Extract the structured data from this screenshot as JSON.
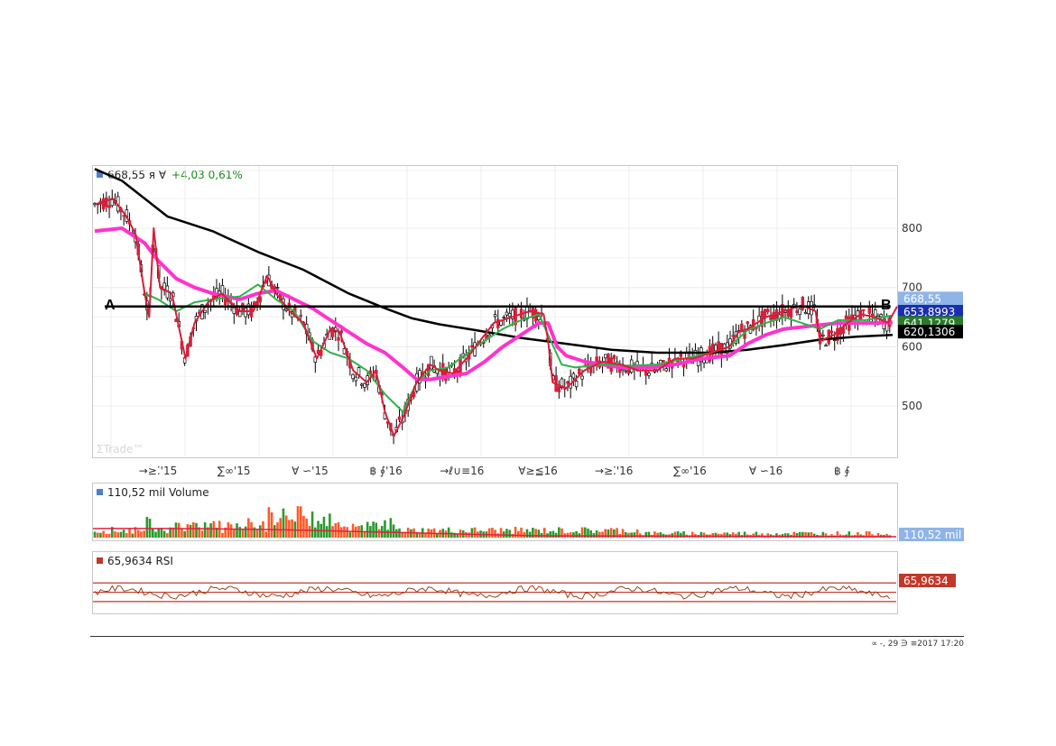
{
  "main": {
    "legend_value": "668,55 я ∀",
    "legend_change": "+4,03 0,61%",
    "legend_color": "#4a7fd4",
    "watermark": "ΣTrade™",
    "label_a": "A",
    "label_b": "B"
  },
  "price_tags": [
    {
      "text": "668,55",
      "value": 668.55,
      "bg": "#8fb4e8",
      "fg": "#ffffff"
    },
    {
      "text": "653,8993",
      "value": 653.9,
      "bg": "#1a2fb0",
      "fg": "#ffffff"
    },
    {
      "text": "641,1279",
      "value": 641.1,
      "bg": "#2a7a2a",
      "fg": "#ffffff"
    },
    {
      "text": "620,1306",
      "value": 620.13,
      "bg": "#000000",
      "fg": "#ffffff"
    }
  ],
  "volume": {
    "legend": "110,52 mil Volume",
    "tag": "110,52 mil",
    "legend_color": "#4a7fd4",
    "tag_bg": "#8fb4e8"
  },
  "rsi": {
    "legend": "65,9634 RSI",
    "tag": "65,9634",
    "legend_color": "#c0392b",
    "tag_bg": "#c0392b",
    "value": 65.9634
  },
  "footer": {
    "timestamp": "∝ -, 29 ∋ ≡2017 17:20"
  },
  "chart_data": {
    "type": "line",
    "ylim": [
      415,
      905
    ],
    "yticks": [
      500,
      600,
      700,
      800
    ],
    "x_tick_labels": [
      "→≥⁚'15",
      "∑∞'15",
      "∀ ∽'15",
      "฿ ∮'16",
      "→ℓ∪≡16",
      "∀≥≦16",
      "→≥⁚'16",
      "∑∞'16",
      "∀ ∽16",
      "฿ ∮"
    ],
    "horizontal_line_AB": 668,
    "series": [
      {
        "color": "#000000",
        "points": [
          [
            0,
            900
          ],
          [
            30,
            880
          ],
          [
            80,
            820
          ],
          [
            130,
            795
          ],
          [
            180,
            760
          ],
          [
            230,
            730
          ],
          [
            280,
            690
          ],
          [
            320,
            665
          ],
          [
            350,
            648
          ],
          [
            380,
            638
          ],
          [
            420,
            628
          ],
          [
            470,
            615
          ],
          [
            520,
            605
          ],
          [
            570,
            595
          ],
          [
            620,
            590
          ],
          [
            680,
            590
          ],
          [
            720,
            595
          ],
          [
            760,
            603
          ],
          [
            800,
            612
          ],
          [
            840,
            617
          ],
          [
            880,
            620
          ]
        ]
      },
      {
        "color": "#ff33cc",
        "points": [
          [
            0,
            795
          ],
          [
            30,
            800
          ],
          [
            55,
            775
          ],
          [
            70,
            745
          ],
          [
            90,
            715
          ],
          [
            110,
            700
          ],
          [
            130,
            690
          ],
          [
            160,
            680
          ],
          [
            180,
            690
          ],
          [
            200,
            695
          ],
          [
            220,
            680
          ],
          [
            240,
            665
          ],
          [
            260,
            645
          ],
          [
            280,
            625
          ],
          [
            300,
            605
          ],
          [
            320,
            590
          ],
          [
            340,
            565
          ],
          [
            355,
            545
          ],
          [
            370,
            545
          ],
          [
            390,
            550
          ],
          [
            410,
            555
          ],
          [
            430,
            575
          ],
          [
            450,
            600
          ],
          [
            470,
            620
          ],
          [
            490,
            640
          ],
          [
            500,
            640
          ],
          [
            510,
            600
          ],
          [
            520,
            585
          ],
          [
            540,
            575
          ],
          [
            560,
            570
          ],
          [
            580,
            565
          ],
          [
            610,
            565
          ],
          [
            640,
            570
          ],
          [
            670,
            580
          ],
          [
            700,
            585
          ],
          [
            720,
            605
          ],
          [
            740,
            620
          ],
          [
            760,
            630
          ],
          [
            790,
            635
          ],
          [
            820,
            640
          ],
          [
            850,
            640
          ],
          [
            880,
            641
          ]
        ]
      },
      {
        "color": "#2db34a",
        "points": [
          [
            55,
            690
          ],
          [
            70,
            680
          ],
          [
            90,
            660
          ],
          [
            110,
            675
          ],
          [
            130,
            680
          ],
          [
            160,
            685
          ],
          [
            180,
            705
          ],
          [
            200,
            680
          ],
          [
            220,
            660
          ],
          [
            240,
            610
          ],
          [
            260,
            590
          ],
          [
            280,
            580
          ],
          [
            300,
            560
          ],
          [
            320,
            520
          ],
          [
            340,
            490
          ],
          [
            355,
            540
          ],
          [
            370,
            560
          ],
          [
            390,
            565
          ],
          [
            420,
            600
          ],
          [
            450,
            630
          ],
          [
            470,
            645
          ],
          [
            490,
            655
          ],
          [
            500,
            620
          ],
          [
            515,
            570
          ],
          [
            530,
            565
          ],
          [
            560,
            570
          ],
          [
            590,
            568
          ],
          [
            620,
            570
          ],
          [
            650,
            580
          ],
          [
            680,
            590
          ],
          [
            700,
            600
          ],
          [
            720,
            628
          ],
          [
            740,
            640
          ],
          [
            760,
            650
          ],
          [
            780,
            640
          ],
          [
            800,
            630
          ],
          [
            820,
            645
          ],
          [
            850,
            645
          ],
          [
            880,
            653
          ]
        ]
      },
      {
        "color": "#d6203a",
        "points": [
          [
            0,
            840
          ],
          [
            20,
            850
          ],
          [
            35,
            820
          ],
          [
            45,
            790
          ],
          [
            55,
            690
          ],
          [
            60,
            650
          ],
          [
            65,
            800
          ],
          [
            72,
            700
          ],
          [
            85,
            690
          ],
          [
            100,
            580
          ],
          [
            110,
            640
          ],
          [
            125,
            675
          ],
          [
            140,
            690
          ],
          [
            160,
            660
          ],
          [
            175,
            660
          ],
          [
            190,
            720
          ],
          [
            200,
            690
          ],
          [
            215,
            660
          ],
          [
            230,
            640
          ],
          [
            245,
            580
          ],
          [
            260,
            630
          ],
          [
            270,
            625
          ],
          [
            285,
            560
          ],
          [
            300,
            540
          ],
          [
            310,
            560
          ],
          [
            320,
            490
          ],
          [
            330,
            450
          ],
          [
            340,
            480
          ],
          [
            355,
            540
          ],
          [
            370,
            570
          ],
          [
            380,
            560
          ],
          [
            395,
            555
          ],
          [
            410,
            580
          ],
          [
            420,
            600
          ],
          [
            440,
            640
          ],
          [
            460,
            650
          ],
          [
            480,
            660
          ],
          [
            495,
            655
          ],
          [
            500,
            610
          ],
          [
            505,
            540
          ],
          [
            520,
            530
          ],
          [
            540,
            560
          ],
          [
            560,
            575
          ],
          [
            580,
            570
          ],
          [
            600,
            560
          ],
          [
            620,
            560
          ],
          [
            640,
            580
          ],
          [
            660,
            580
          ],
          [
            680,
            590
          ],
          [
            700,
            600
          ],
          [
            710,
            625
          ],
          [
            720,
            630
          ],
          [
            740,
            650
          ],
          [
            760,
            660
          ],
          [
            780,
            670
          ],
          [
            795,
            660
          ],
          [
            800,
            610
          ],
          [
            815,
            620
          ],
          [
            830,
            640
          ],
          [
            845,
            655
          ],
          [
            860,
            650
          ],
          [
            875,
            640
          ],
          [
            885,
            668
          ]
        ]
      }
    ]
  }
}
